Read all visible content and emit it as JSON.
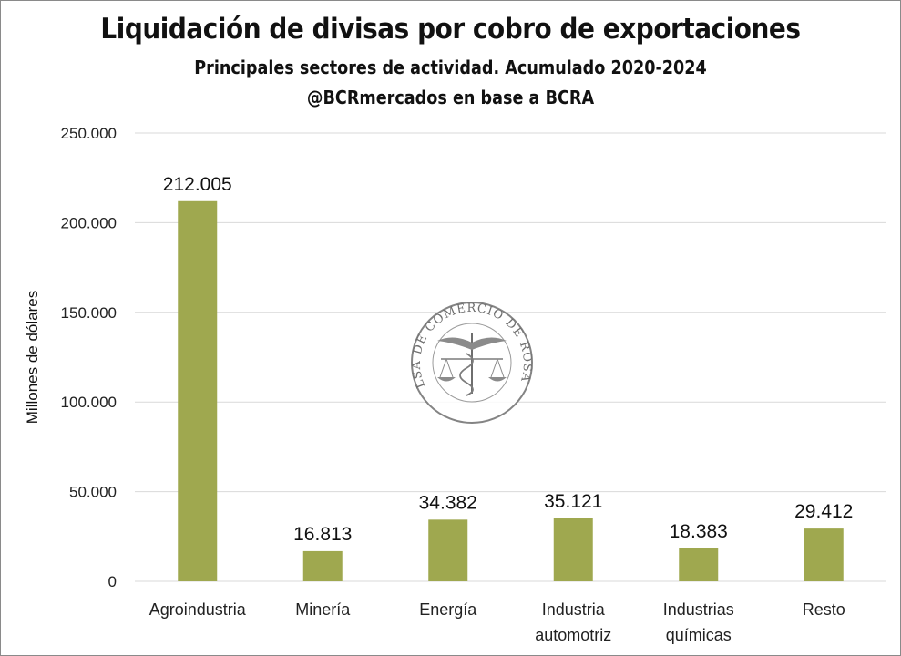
{
  "chart_data": {
    "type": "bar",
    "title": "Liquidación de divisas por cobro de exportaciones",
    "subtitle": "Principales sectores de actividad. Acumulado 2020-2024",
    "source": "@BCRmercados en base a BCRA",
    "ylabel": "Millones de dólares",
    "xlabel": "",
    "categories": [
      [
        "Agroindustria"
      ],
      [
        "Minería"
      ],
      [
        "Energía"
      ],
      [
        "Industria",
        "automotriz"
      ],
      [
        "Industrias",
        "químicas"
      ],
      [
        "Resto"
      ]
    ],
    "values": [
      212005,
      16813,
      34382,
      35121,
      18383,
      29412
    ],
    "value_labels": [
      "212.005",
      "16.813",
      "34.382",
      "35.121",
      "18.383",
      "29.412"
    ],
    "ylim": [
      0,
      250000
    ],
    "yticks": [
      0,
      50000,
      100000,
      150000,
      200000,
      250000
    ],
    "ytick_labels": [
      "0",
      "50.000",
      "100.000",
      "150.000",
      "200.000",
      "250.000"
    ],
    "grid": true,
    "legend": "none",
    "bar_color": "#9fa84f",
    "grid_color": "#d9d9d9",
    "watermark": {
      "text": "BOLSA DE COMERCIO DE ROSARIO",
      "icon": "bolsa-comercio-rosario-seal-icon"
    }
  }
}
